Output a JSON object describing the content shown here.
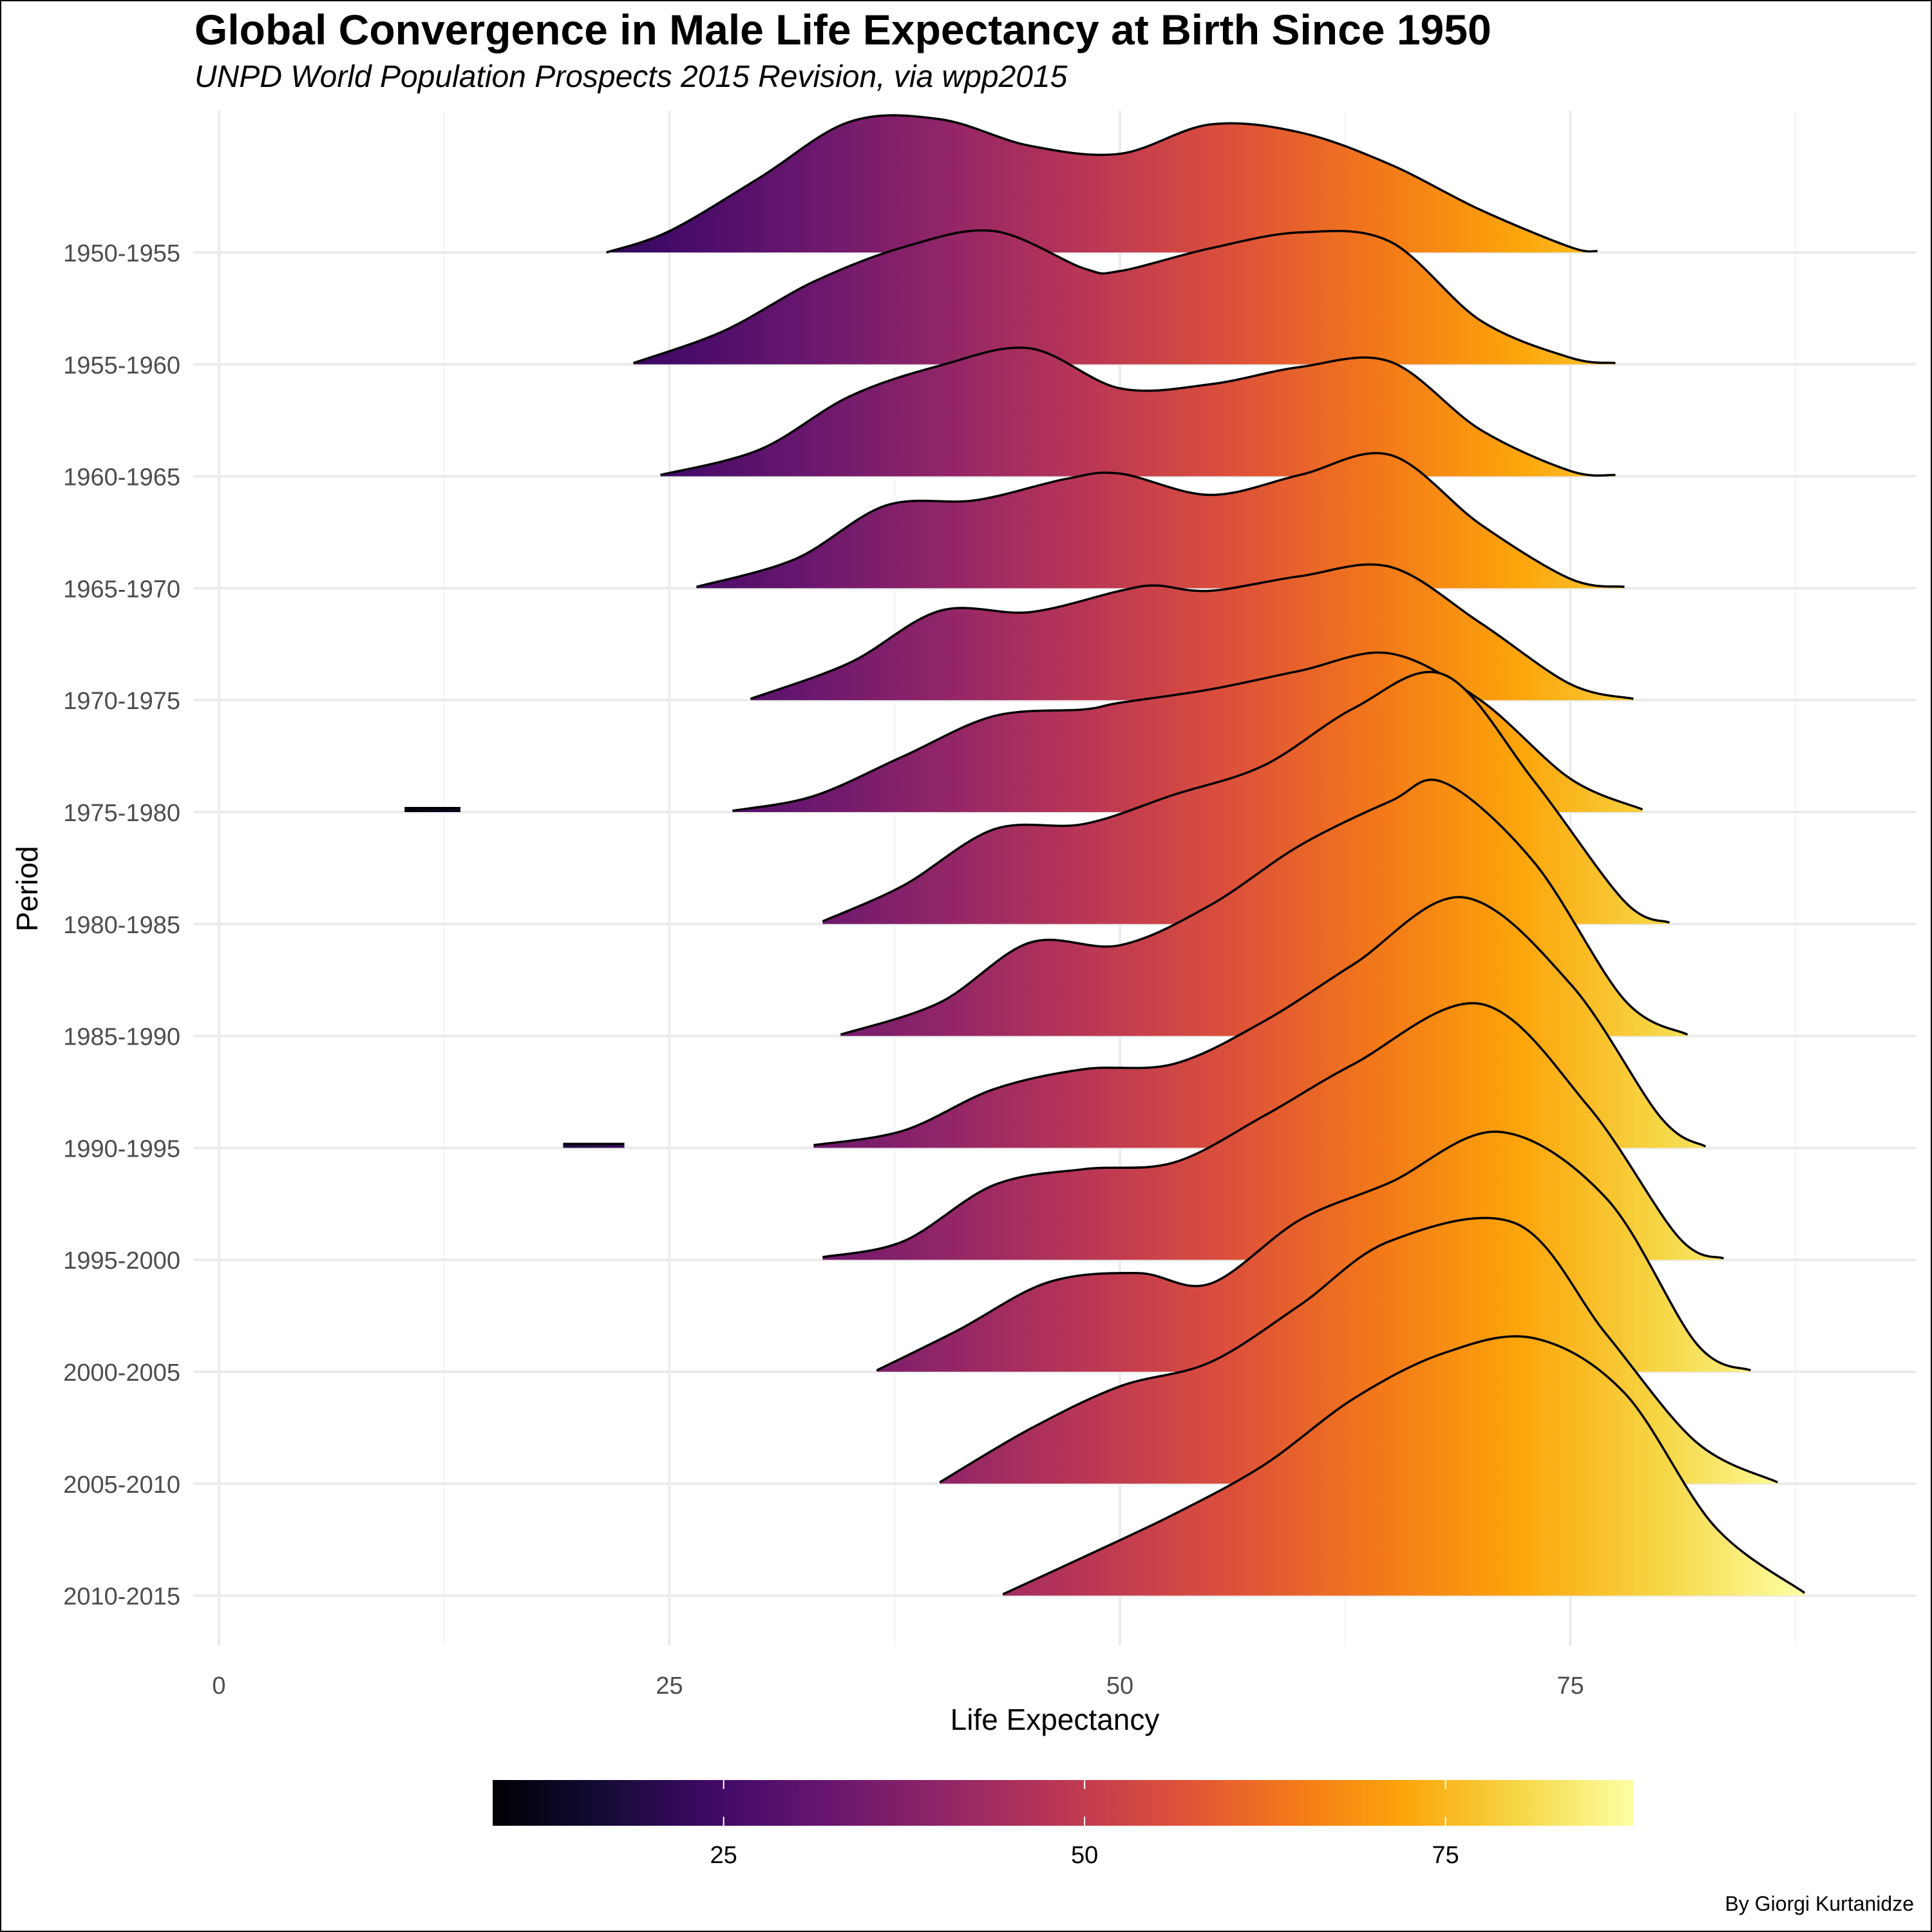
{
  "chart_data": {
    "type": "area",
    "title": "Global Convergence in Male Life Expectancy at Birth Since 1950",
    "subtitle": "UNPD World Population Prospects 2015 Revision, via wpp2015",
    "caption": "By Giorgi Kurtanidze",
    "xlabel": "Life Expectancy",
    "ylabel": "Period",
    "xlim": [
      -1.2,
      94
    ],
    "x_ticks": [
      0,
      25,
      50,
      75
    ],
    "grid": true,
    "legend": {
      "position": "bottom",
      "type": "colorbar",
      "range": [
        9,
        88
      ],
      "ticks": [
        25,
        50,
        75
      ],
      "palette": "inferno"
    },
    "categories": [
      "1950-1955",
      "1955-1960",
      "1960-1965",
      "1965-1970",
      "1970-1975",
      "1975-1980",
      "1980-1985",
      "1985-1990",
      "1990-1995",
      "1995-2000",
      "2000-2005",
      "2005-2010",
      "2010-2015"
    ],
    "series": [
      {
        "period": "1950-1955",
        "x": [
          21.5,
          25,
          30,
          35,
          40,
          45,
          50,
          55,
          60,
          65,
          70,
          75,
          76.5
        ],
        "density": [
          0.0,
          0.16,
          0.56,
          0.98,
          1.0,
          0.8,
          0.74,
          0.96,
          0.9,
          0.66,
          0.32,
          0.04,
          0.01
        ]
      },
      {
        "period": "1955-1960",
        "x": [
          23,
          28,
          33,
          38,
          43,
          48,
          50,
          55,
          60,
          65,
          70,
          75,
          77.5
        ],
        "density": [
          0.01,
          0.25,
          0.62,
          0.88,
          1.0,
          0.72,
          0.7,
          0.87,
          0.99,
          0.92,
          0.33,
          0.05,
          0.01
        ]
      },
      {
        "period": "1960-1965",
        "x": [
          24.5,
          30,
          35,
          40,
          45,
          50,
          55,
          60,
          65,
          70,
          75,
          77.5
        ],
        "density": [
          0.01,
          0.2,
          0.6,
          0.83,
          0.96,
          0.66,
          0.69,
          0.82,
          0.86,
          0.35,
          0.04,
          0.01
        ]
      },
      {
        "period": "1965-1970",
        "x": [
          26.5,
          32,
          37,
          42,
          47,
          50,
          55,
          60,
          65,
          70,
          75,
          78
        ],
        "density": [
          0.01,
          0.22,
          0.62,
          0.66,
          0.82,
          0.86,
          0.7,
          0.85,
          1.0,
          0.48,
          0.07,
          0.01
        ]
      },
      {
        "period": "1970-1975",
        "x": [
          29.5,
          35,
          40,
          45,
          50,
          52,
          55,
          60,
          65,
          70,
          75,
          78.5
        ],
        "density": [
          0.01,
          0.28,
          0.67,
          0.66,
          0.82,
          0.86,
          0.82,
          0.93,
          1.0,
          0.58,
          0.12,
          0.01
        ]
      },
      {
        "period": "1975-1980",
        "x": [
          28.5,
          33,
          38,
          43,
          48,
          50,
          55,
          60,
          65,
          70,
          75,
          79
        ],
        "density": [
          0.01,
          0.12,
          0.42,
          0.72,
          0.77,
          0.82,
          0.92,
          1.06,
          1.19,
          0.84,
          0.25,
          0.02
        ]
      },
      {
        "period": "1975-1980 (outlier)",
        "x": [
          10.3,
          11.8,
          13.4
        ],
        "density": [
          0.03,
          0.03,
          0.03
        ]
      },
      {
        "period": "1980-1985",
        "x": [
          33.5,
          38,
          43,
          48,
          53,
          58,
          63,
          68,
          73,
          78,
          80.5
        ],
        "density": [
          0.02,
          0.29,
          0.71,
          0.75,
          0.97,
          1.19,
          1.62,
          1.87,
          1.07,
          0.17,
          0.01
        ]
      },
      {
        "period": "1985-1990",
        "x": [
          34.5,
          40,
          45,
          50,
          55,
          60,
          65,
          68,
          73,
          78,
          81.5
        ],
        "density": [
          0.01,
          0.25,
          0.7,
          0.68,
          0.98,
          1.43,
          1.76,
          1.9,
          1.3,
          0.27,
          0.01
        ]
      },
      {
        "period": "1990-1995",
        "x": [
          33,
          38,
          43,
          48,
          53,
          58,
          63,
          69,
          75,
          80,
          82.5
        ],
        "density": [
          0.02,
          0.13,
          0.44,
          0.59,
          0.63,
          0.95,
          1.38,
          1.88,
          1.23,
          0.23,
          0.01
        ]
      },
      {
        "period": "1990-1995 (outlier)",
        "x": [
          19.1,
          20.8,
          22.5
        ],
        "density": [
          0.03,
          0.03,
          0.03
        ]
      },
      {
        "period": "1995-2000",
        "x": [
          33.5,
          38,
          43,
          48,
          53,
          58,
          63,
          70,
          76,
          81,
          83.5
        ],
        "density": [
          0.02,
          0.14,
          0.56,
          0.68,
          0.73,
          1.08,
          1.47,
          1.92,
          1.15,
          0.17,
          0.01
        ]
      },
      {
        "period": "2000-2005",
        "x": [
          36.5,
          41,
          46,
          51,
          55,
          60,
          65,
          71,
          77,
          82,
          85
        ],
        "density": [
          0.01,
          0.31,
          0.67,
          0.74,
          0.66,
          1.14,
          1.42,
          1.8,
          1.3,
          0.21,
          0.01
        ]
      },
      {
        "period": "2005-2010",
        "x": [
          40,
          45,
          50,
          55,
          60,
          65,
          72,
          77,
          82,
          86.5
        ],
        "density": [
          0.01,
          0.41,
          0.73,
          0.91,
          1.34,
          1.82,
          1.95,
          1.12,
          0.31,
          0.01
        ]
      },
      {
        "period": "2010-2015",
        "x": [
          43.5,
          48,
          53,
          58,
          63,
          68,
          73,
          78,
          83,
          88
        ],
        "density": [
          0.01,
          0.29,
          0.61,
          0.98,
          1.48,
          1.82,
          1.93,
          1.52,
          0.52,
          0.02
        ]
      }
    ]
  }
}
